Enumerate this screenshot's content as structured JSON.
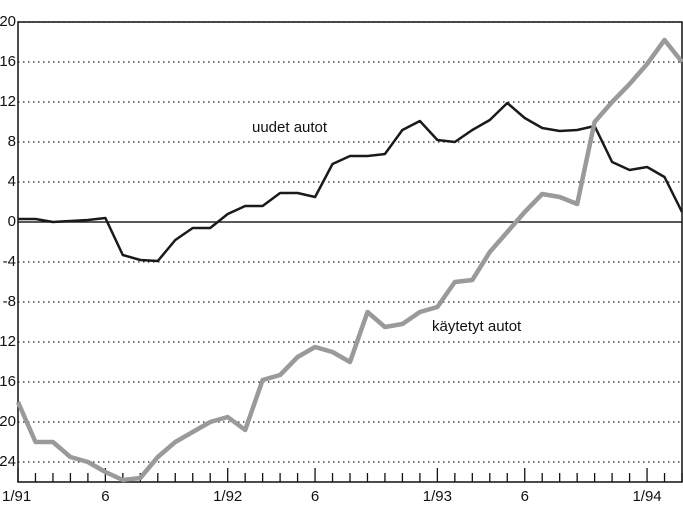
{
  "chart_data": {
    "type": "line",
    "categories": [
      "1/91",
      null,
      null,
      null,
      null,
      "6",
      null,
      null,
      null,
      null,
      null,
      null,
      "1/92",
      null,
      null,
      null,
      null,
      "6",
      null,
      null,
      null,
      null,
      null,
      null,
      "1/93",
      null,
      null,
      null,
      null,
      "6",
      null,
      null,
      null,
      null,
      null,
      null,
      "1/94",
      null,
      null
    ],
    "series": [
      {
        "name": "uudet autot",
        "color": "#1a1a1a",
        "values": [
          0.3,
          0.3,
          0,
          0.1,
          0.2,
          0.4,
          -3.3,
          -3.8,
          -3.9,
          -1.8,
          -0.6,
          -0.6,
          0.8,
          1.6,
          1.6,
          2.9,
          2.9,
          2.5,
          5.8,
          6.6,
          6.6,
          6.8,
          9.2,
          10.1,
          8.2,
          8,
          9.2,
          10.2,
          11.9,
          10.4,
          9.4,
          9.1,
          9.2,
          9.6,
          6,
          5.2,
          5.5,
          4.5,
          1
        ]
      },
      {
        "name": "käytetyt autot",
        "color": "#9a9a9a",
        "values": [
          -18,
          -22,
          -22,
          -23.5,
          -24,
          -25,
          -25.8,
          -25.6,
          -23.5,
          -22,
          -21,
          -20,
          -19.5,
          -20.8,
          -15.8,
          -15.3,
          -13.5,
          -12.5,
          -13,
          -14,
          -9,
          -10.5,
          -10.2,
          -9,
          -8.5,
          -6,
          -5.8,
          -3,
          -1,
          1,
          2.8,
          2.5,
          1.8,
          10,
          12,
          13.8,
          15.8,
          18.2,
          16
        ]
      }
    ],
    "ylim": [
      -26,
      20
    ],
    "yticks": [
      20,
      16,
      12,
      8,
      4,
      0,
      -4,
      -8,
      -12,
      -16,
      -20,
      -24
    ],
    "grid": true
  }
}
